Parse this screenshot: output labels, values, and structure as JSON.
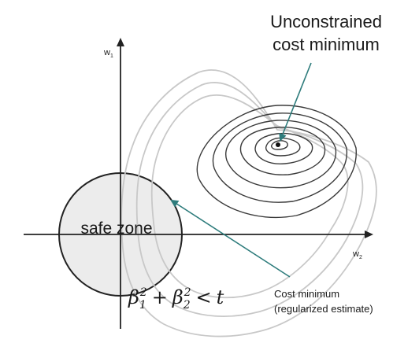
{
  "axes": {
    "vertical_label": "w",
    "vertical_subscript": "1",
    "horizontal_label": "w",
    "horizontal_subscript": "2"
  },
  "labels": {
    "unconstrained_line1": "Unconstrained",
    "unconstrained_line2": "cost minimum",
    "safe_zone": "safe zone",
    "cost_minimum_line1": "Cost minimum",
    "cost_minimum_line2": "(regularized estimate)"
  },
  "constraint": {
    "beta": "β",
    "sub1": "1",
    "sub2": "2",
    "sup": "2",
    "plus": "+",
    "lt": "<",
    "t": "t"
  },
  "colors": {
    "arrow": "#2e7c7c",
    "safe_zone_fill": "#ececec",
    "outer_contours": "#c8c8c8",
    "inner_contours": "#3a3a3a"
  }
}
